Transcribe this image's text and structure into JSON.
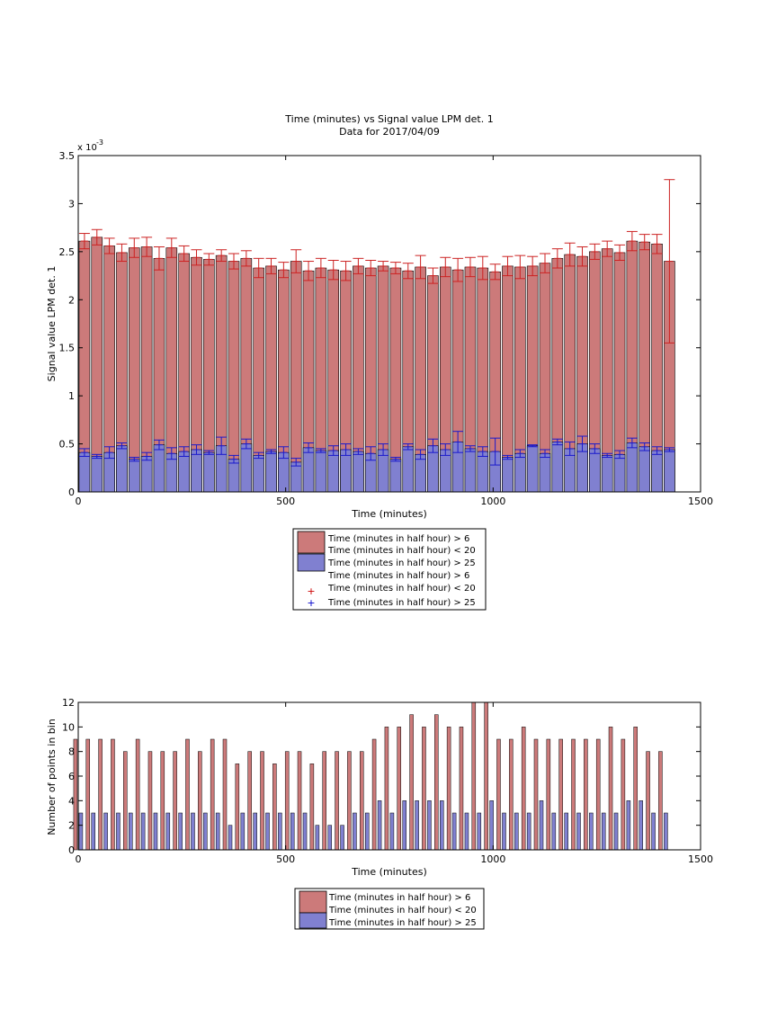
{
  "chart_data": [
    {
      "type": "bar",
      "title": "Time (minutes) vs Signal value LPM det. 1",
      "subtitle": "Data for 2017/04/09",
      "xlabel": "Time (minutes)",
      "ylabel": "Signal value LPM det. 1",
      "y_exponent_label": "x 10",
      "y_exponent_power": "-3",
      "xlim": [
        0,
        1500
      ],
      "ylim": [
        0,
        3.5
      ],
      "x_ticks": [
        0,
        500,
        1000,
        1500
      ],
      "y_ticks": [
        0,
        0.5,
        1,
        1.5,
        2,
        2.5,
        3,
        3.5
      ],
      "grid": false,
      "legend_position": "below",
      "legend": [
        "Time (minutes in half hour) > 6",
        "Time (minutes in half hour) < 20",
        "Time (minutes in half hour) > 25",
        "Time (minutes in half hour) > 6",
        "Time (minutes in half hour) < 20",
        "Time (minutes in half hour) > 25"
      ],
      "x": [
        15,
        45,
        75,
        105,
        135,
        165,
        195,
        225,
        255,
        285,
        315,
        345,
        375,
        405,
        435,
        465,
        495,
        525,
        555,
        585,
        615,
        645,
        675,
        705,
        735,
        765,
        795,
        825,
        855,
        885,
        915,
        945,
        975,
        1005,
        1035,
        1065,
        1095,
        1125,
        1155,
        1185,
        1215,
        1245,
        1275,
        1305,
        1335,
        1365,
        1395,
        1425
      ],
      "series": [
        {
          "name": "Time (minutes in half hour) > 6",
          "color": "#cc7a7a",
          "values": [
            2.61,
            2.65,
            2.56,
            2.49,
            2.54,
            2.55,
            2.43,
            2.54,
            2.48,
            2.44,
            2.42,
            2.46,
            2.4,
            2.43,
            2.33,
            2.35,
            2.31,
            2.4,
            2.3,
            2.33,
            2.31,
            2.3,
            2.35,
            2.33,
            2.35,
            2.33,
            2.3,
            2.34,
            2.25,
            2.34,
            2.31,
            2.34,
            2.33,
            2.29,
            2.35,
            2.34,
            2.35,
            2.38,
            2.43,
            2.47,
            2.45,
            2.5,
            2.53,
            2.49,
            2.61,
            2.6,
            2.58,
            2.4
          ],
          "error": [
            0.08,
            0.08,
            0.08,
            0.09,
            0.1,
            0.1,
            0.12,
            0.1,
            0.08,
            0.08,
            0.06,
            0.06,
            0.08,
            0.08,
            0.1,
            0.08,
            0.08,
            0.12,
            0.1,
            0.1,
            0.1,
            0.1,
            0.08,
            0.08,
            0.05,
            0.06,
            0.08,
            0.12,
            0.08,
            0.1,
            0.12,
            0.1,
            0.12,
            0.08,
            0.1,
            0.12,
            0.1,
            0.1,
            0.1,
            0.12,
            0.1,
            0.08,
            0.08,
            0.08,
            0.1,
            0.08,
            0.1,
            0.85
          ]
        },
        {
          "name": "Time (minutes in half hour) < 20",
          "color": "#8080d0",
          "values": [
            0.41,
            0.37,
            0.41,
            0.48,
            0.34,
            0.37,
            0.49,
            0.4,
            0.42,
            0.44,
            0.41,
            0.48,
            0.34,
            0.5,
            0.38,
            0.42,
            0.41,
            0.31,
            0.46,
            0.43,
            0.43,
            0.44,
            0.42,
            0.4,
            0.44,
            0.34,
            0.47,
            0.39,
            0.48,
            0.44,
            0.52,
            0.45,
            0.42,
            0.42,
            0.36,
            0.4,
            0.48,
            0.4,
            0.52,
            0.45,
            0.5,
            0.45,
            0.38,
            0.39,
            0.51,
            0.47,
            0.43,
            0.44
          ],
          "error": [
            0.04,
            0.02,
            0.06,
            0.03,
            0.02,
            0.04,
            0.05,
            0.06,
            0.05,
            0.05,
            0.02,
            0.09,
            0.04,
            0.05,
            0.03,
            0.02,
            0.06,
            0.04,
            0.05,
            0.02,
            0.05,
            0.06,
            0.03,
            0.07,
            0.06,
            0.02,
            0.03,
            0.05,
            0.07,
            0.06,
            0.11,
            0.03,
            0.05,
            0.14,
            0.02,
            0.04,
            0.01,
            0.04,
            0.03,
            0.07,
            0.08,
            0.05,
            0.02,
            0.04,
            0.05,
            0.04,
            0.04,
            0.02
          ]
        }
      ]
    },
    {
      "type": "bar",
      "xlabel": "Time (minutes)",
      "ylabel": "Number of points in bin",
      "xlim": [
        0,
        1500
      ],
      "ylim": [
        0,
        12
      ],
      "x_ticks": [
        0,
        500,
        1000,
        1500
      ],
      "y_ticks": [
        0,
        2,
        4,
        6,
        8,
        10,
        12
      ],
      "grid": false,
      "legend_position": "below",
      "legend": [
        "Time (minutes in half hour) > 6",
        "Time (minutes in half hour) < 20",
        "Time (minutes in half hour) > 25"
      ],
      "x": [
        15,
        45,
        75,
        105,
        135,
        165,
        195,
        225,
        255,
        285,
        315,
        345,
        375,
        405,
        435,
        465,
        495,
        525,
        555,
        585,
        615,
        645,
        675,
        705,
        735,
        765,
        795,
        825,
        855,
        885,
        915,
        945,
        975,
        1005,
        1035,
        1065,
        1095,
        1125,
        1155,
        1185,
        1215,
        1245,
        1275,
        1305,
        1335,
        1365,
        1395,
        1425
      ],
      "series": [
        {
          "name": "Time (minutes in half hour) > 6",
          "color": "#cc7a7a",
          "values": [
            9,
            9,
            9,
            9,
            8,
            9,
            8,
            8,
            8,
            9,
            8,
            9,
            9,
            7,
            8,
            8,
            7,
            8,
            8,
            7,
            8,
            8,
            8,
            8,
            9,
            10,
            10,
            11,
            10,
            11,
            10,
            10,
            12,
            12,
            9,
            9,
            10,
            9,
            9,
            9,
            9,
            9,
            9,
            10,
            9,
            10,
            8,
            8
          ]
        },
        {
          "name": "Time (minutes in half hour) < 20",
          "color": "#8080d0",
          "values": [
            3,
            3,
            3,
            3,
            3,
            3,
            3,
            3,
            3,
            3,
            3,
            3,
            2,
            3,
            3,
            3,
            3,
            3,
            3,
            2,
            2,
            2,
            3,
            3,
            4,
            3,
            4,
            4,
            4,
            4,
            3,
            3,
            3,
            4,
            3,
            3,
            3,
            4,
            3,
            3,
            3,
            3,
            3,
            3,
            4,
            4,
            3,
            3
          ]
        }
      ]
    }
  ]
}
